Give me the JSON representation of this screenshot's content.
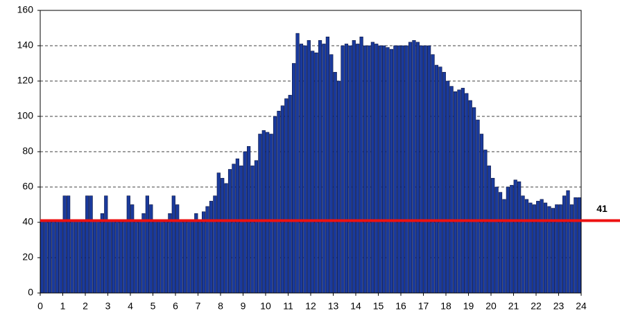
{
  "chart_data": {
    "type": "bar",
    "values": [
      41,
      41,
      41,
      41,
      41,
      41,
      55,
      55,
      41,
      41,
      41,
      41,
      55,
      55,
      41,
      41,
      45,
      55,
      41,
      41,
      41,
      41,
      41,
      55,
      50,
      41,
      41,
      45,
      55,
      50,
      41,
      41,
      41,
      41,
      45,
      55,
      50,
      41,
      41,
      41,
      41,
      45,
      41,
      46,
      49,
      52,
      55,
      68,
      65,
      62,
      70,
      73,
      76,
      72,
      80,
      83,
      72,
      75,
      90,
      92,
      91,
      90,
      100,
      103,
      106,
      110,
      112,
      130,
      147,
      141,
      140,
      143,
      137,
      136,
      143,
      141,
      145,
      135,
      125,
      120,
      140,
      141,
      140,
      143,
      141,
      145,
      140,
      140,
      142,
      141,
      140,
      140,
      139,
      138,
      140,
      140,
      140,
      140,
      142,
      143,
      142,
      140,
      140,
      140,
      135,
      129,
      128,
      125,
      120,
      117,
      114,
      115,
      116,
      113,
      109,
      105,
      98,
      90,
      81,
      72,
      65,
      60,
      57,
      53,
      60,
      61,
      64,
      63,
      55,
      53,
      51,
      50,
      52,
      53,
      51,
      49,
      48,
      50,
      50,
      55,
      58,
      50,
      54,
      54
    ],
    "color": "#1a3a9c",
    "xlim": [
      0,
      24
    ],
    "xticks": [
      0,
      1,
      2,
      3,
      4,
      5,
      6,
      7,
      8,
      9,
      10,
      11,
      12,
      13,
      14,
      15,
      16,
      17,
      18,
      19,
      20,
      21,
      22,
      23,
      24
    ],
    "ylim": [
      0,
      160
    ],
    "yticks": [
      0,
      20,
      40,
      60,
      80,
      100,
      120,
      140,
      160
    ],
    "grid": true,
    "reference_line": {
      "value": 41,
      "color": "#ee1111"
    }
  }
}
